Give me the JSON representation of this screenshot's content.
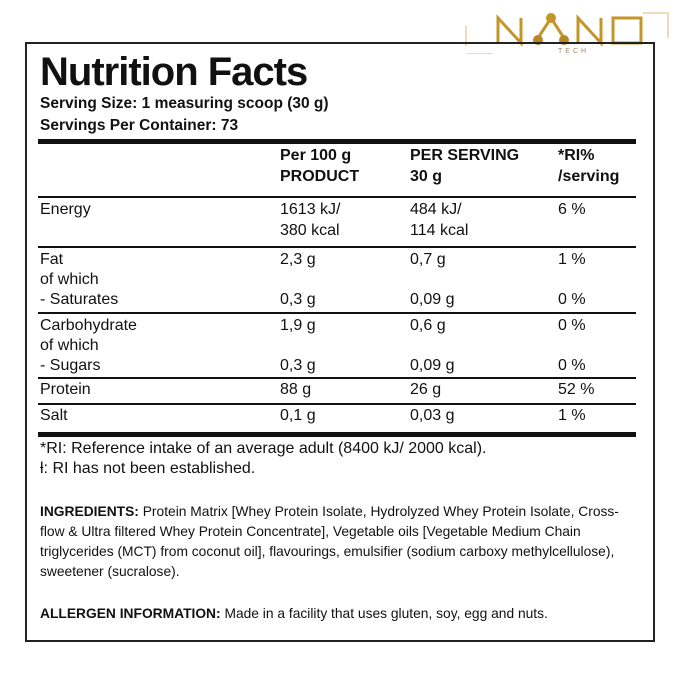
{
  "logo": {
    "text": "NANO",
    "sub": "TECH",
    "color": "#c4962a"
  },
  "title": "Nutrition Facts",
  "serving_size": "Serving Size: 1 measuring scoop (30 g)",
  "servings_per_container": "Servings Per Container: 73",
  "headers": [
    [
      "Per 100 g",
      "PRODUCT"
    ],
    [
      "PER SERVING",
      "30 g"
    ],
    [
      "*RI%",
      "/serving"
    ]
  ],
  "rows": [
    {
      "label": [
        "Energy"
      ],
      "per100": [
        "1613 kJ/",
        "380 kcal"
      ],
      "serving": [
        "484 kJ/",
        "114 kcal"
      ],
      "ri": "6 %"
    },
    {
      "label": [
        "Fat",
        "of which"
      ],
      "per100": [
        "2,3 g"
      ],
      "serving": [
        "0,7 g"
      ],
      "ri": "1 %"
    },
    {
      "label": [
        "- Saturates"
      ],
      "per100": [
        "0,3 g"
      ],
      "serving": [
        "0,09 g"
      ],
      "ri": "0 %"
    },
    {
      "label": [
        "Carbohydrate",
        "of which"
      ],
      "per100": [
        "1,9 g"
      ],
      "serving": [
        "0,6 g"
      ],
      "ri": "0 %"
    },
    {
      "label": [
        "- Sugars"
      ],
      "per100": [
        "0,3 g"
      ],
      "serving": [
        "0,09 g"
      ],
      "ri": "0 %"
    },
    {
      "label": [
        "Protein"
      ],
      "per100": [
        "88 g"
      ],
      "serving": [
        "26 g"
      ],
      "ri": "52 %"
    },
    {
      "label": [
        "Salt"
      ],
      "per100": [
        "0,1 g"
      ],
      "serving": [
        "0,03 g"
      ],
      "ri": "1 %"
    }
  ],
  "footnotes": [
    "*RI: Reference intake of an average adult (8400 kJ/ 2000 kcal).",
    "ƚ: RI has not been established."
  ],
  "ingredients": {
    "label": "INGREDIENTS:",
    "text": " Protein Matrix [Whey Protein Isolate, Hydrolyzed Whey Protein Isolate, Cross-flow & Ultra filtered Whey Protein Concentrate], Vegetable oils [Vegetable Medium Chain triglycerides (MCT) from coconut oil], flavourings, emulsifier (sodium carboxy methylcellulose), sweetener (sucralose)."
  },
  "allergen": {
    "label": "ALLERGEN INFORMATION:",
    "text": " Made in a facility that uses gluten, soy, egg and nuts."
  }
}
